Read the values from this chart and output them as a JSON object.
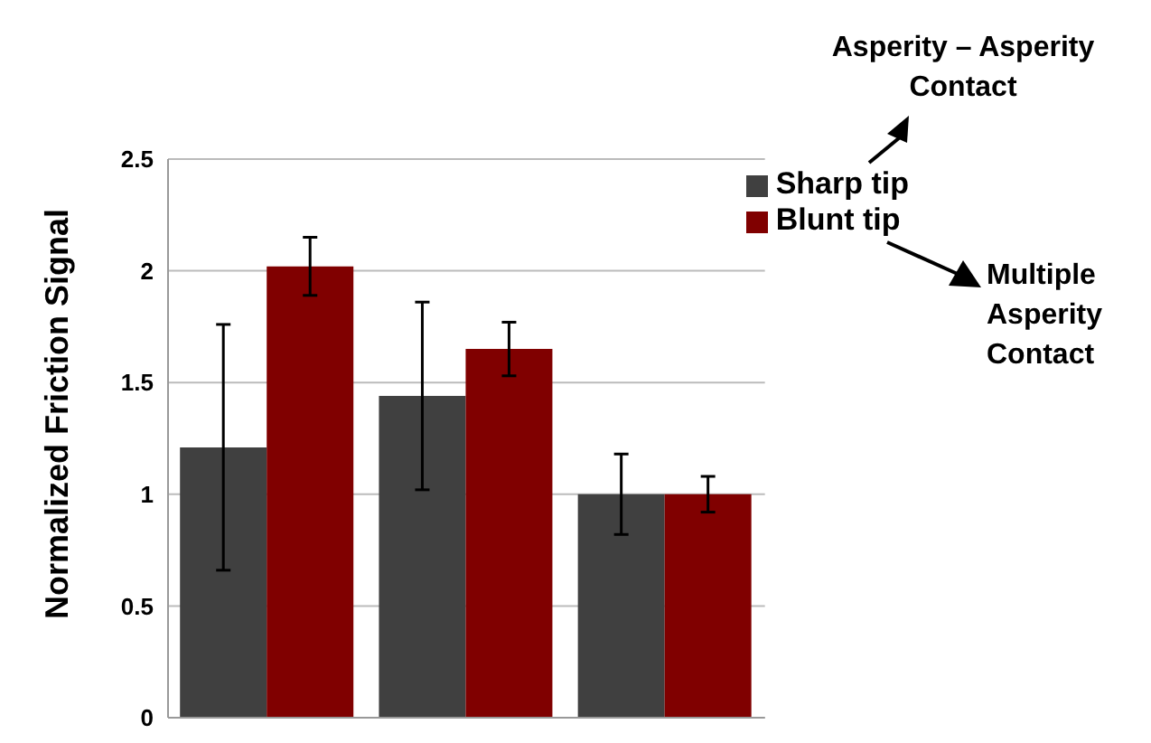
{
  "chart_data": {
    "type": "bar",
    "ylabel": "Normalized Friction Signal",
    "categories": [
      null,
      null,
      null
    ],
    "series": [
      {
        "name": "Sharp tip",
        "color": "#404040",
        "values": [
          1.21,
          1.44,
          1.0
        ],
        "errors": [
          0.55,
          0.42,
          0.18
        ]
      },
      {
        "name": "Blunt tip",
        "color": "#800000",
        "values": [
          2.02,
          1.65,
          1.0
        ],
        "errors": [
          0.13,
          0.12,
          0.08
        ]
      }
    ],
    "ylim": [
      0,
      2.5
    ],
    "yticks": [
      0,
      0.5,
      1,
      1.5,
      2,
      2.5
    ],
    "grid": "y",
    "legend": "top right",
    "tick_labels": "y",
    "annotations": [
      "Asperity – Asperity Contact",
      "Multiple Asperity Contact"
    ]
  }
}
